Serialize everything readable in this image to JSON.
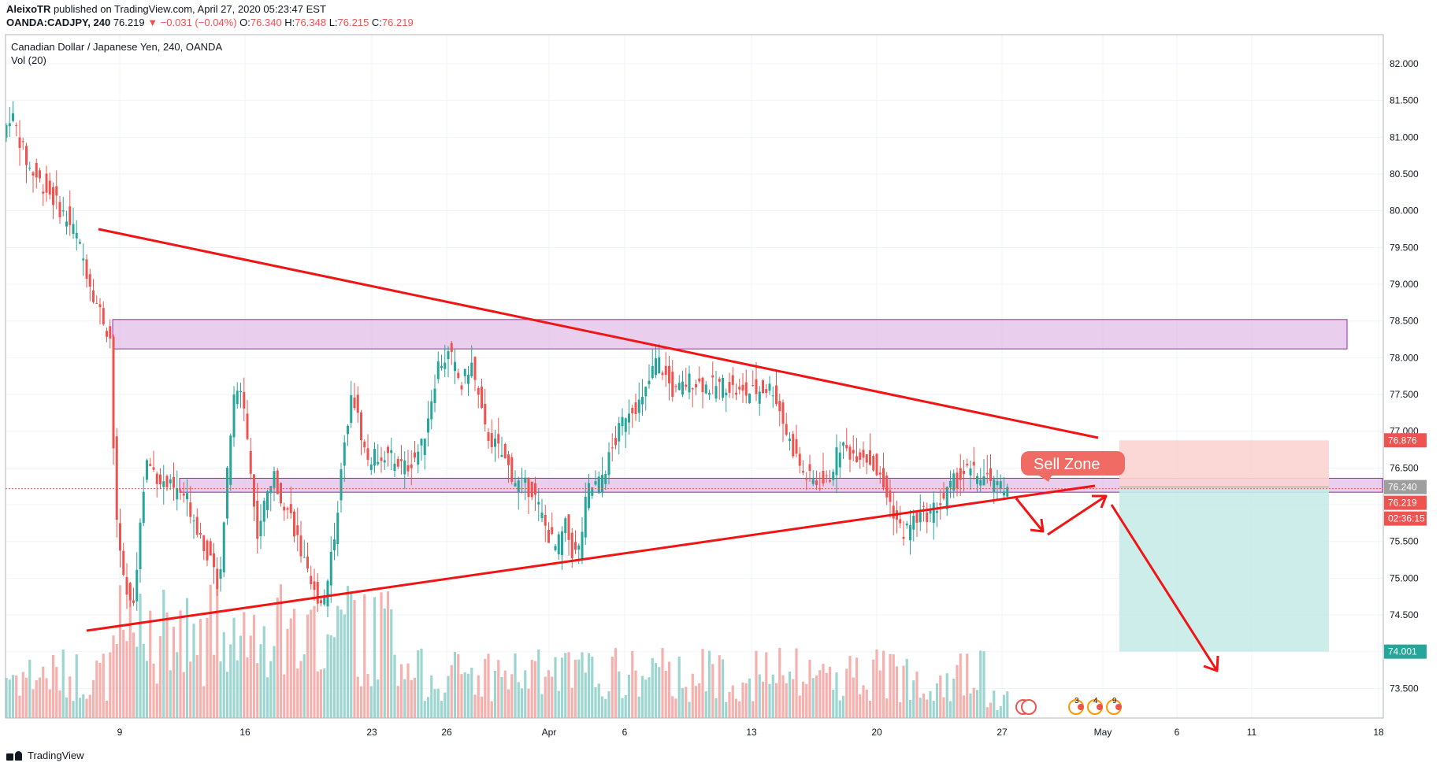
{
  "header": {
    "publisher": "AleixoTR",
    "published_text": " published on TradingView.com, April 27, 2020 05:23:47 EST",
    "symbol": "OANDA:CADJPY, 240",
    "last": "76.219",
    "change": "▼ −0.031 (−0.04%)",
    "o_label": "O:",
    "o_value": "76.340",
    "h_label": "H:",
    "h_value": "76.348",
    "l_label": "L:",
    "l_value": "76.215",
    "c_label": "C:",
    "c_value": "76.219"
  },
  "chart_title": "Canadian Dollar / Japanese Yen, 240, OANDA",
  "vol_label": "Vol (20)",
  "annotation_sell_zone": "Sell Zone",
  "footer_brand": "TradingView",
  "colors": {
    "up": "#26a69a",
    "down": "#ef5350",
    "trendline": "#f01414",
    "zone_fill": "#e1bee7",
    "zone_stroke": "#9c27b0",
    "short_risk": "#fbd3d1",
    "short_reward": "#c8ebe8",
    "vol_up": "#8ccfc8",
    "vol_down": "#f5a3a1",
    "grid": "#f0f3fa"
  },
  "chart_data": {
    "type": "candlestick",
    "y_ticks": [
      "82.000",
      "81.500",
      "81.000",
      "80.500",
      "80.000",
      "79.500",
      "79.000",
      "78.500",
      "78.000",
      "77.500",
      "77.000",
      "76.500",
      "76.000",
      "75.500",
      "75.000",
      "74.500",
      "74.000",
      "73.500"
    ],
    "x_ticks": [
      "9",
      "16",
      "23",
      "26",
      "Apr",
      "6",
      "13",
      "20",
      "27",
      "May",
      "6",
      "11",
      "18"
    ],
    "price_labels": {
      "stop": "76.876",
      "entry": "76.240",
      "last": "76.219",
      "countdown": "02:36:15",
      "target": "74.001"
    },
    "resistance_zone": [
      78.12,
      78.52
    ],
    "sell_zone": [
      76.17,
      76.36
    ],
    "short_position": {
      "stop": 76.876,
      "entry": 76.24,
      "target": 74.001
    },
    "event_markers": [
      "3",
      "4",
      "9"
    ],
    "y_range": [
      73.2,
      82.3
    ]
  }
}
